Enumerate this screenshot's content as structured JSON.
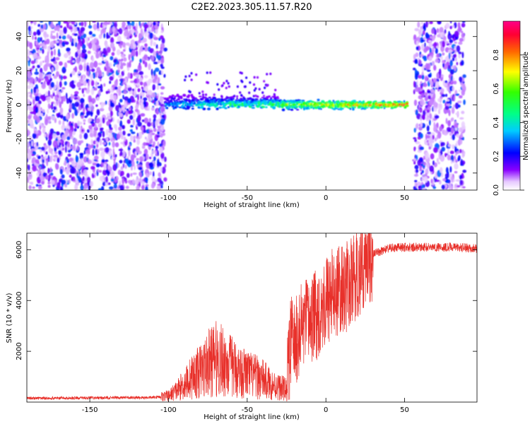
{
  "title": "C2E2.2023.305.11.57.R20",
  "chart_data": [
    {
      "type": "heatmap",
      "description_kind": "spectrogram",
      "xlabel": "Height of straight line (km)",
      "ylabel": "Frequency (Hz)",
      "xlim": [
        -190,
        96
      ],
      "ylim": [
        -50,
        49
      ],
      "xticks": [
        -150,
        -100,
        -50,
        0,
        50
      ],
      "yticks": [
        -40,
        -20,
        0,
        20,
        40
      ],
      "colorbar": {
        "label": "Normalized spectral amplitude",
        "range": [
          0,
          1
        ],
        "ticks": [
          0.0,
          0.2,
          0.4,
          0.6,
          0.8
        ]
      },
      "regions": [
        {
          "name": "noise-left",
          "x_range": [
            -190,
            -102
          ],
          "y_range": [
            -50,
            49
          ],
          "amplitude": 0.15
        },
        {
          "name": "signal-band",
          "x_range": [
            -102,
            52
          ],
          "center_freq_hz": 0,
          "amplitude_peak": 0.95
        },
        {
          "name": "noise-right",
          "x_range": [
            56,
            88
          ],
          "y_range": [
            -50,
            49
          ],
          "amplitude": 0.15
        }
      ]
    },
    {
      "type": "line",
      "xlabel": "Height of straight line (km)",
      "ylabel": "SNR (10 * v/v)",
      "xlim": [
        -190,
        96
      ],
      "ylim": [
        0,
        6650
      ],
      "xticks": [
        -150,
        -100,
        -50,
        0,
        50
      ],
      "yticks": [
        2000,
        4000,
        6000
      ],
      "series": [
        {
          "name": "SNR",
          "color": "#e8302a",
          "x": [
            -190,
            -110,
            -100,
            -95,
            -90,
            -85,
            -80,
            -75,
            -70,
            -65,
            -60,
            -55,
            -50,
            -45,
            -40,
            -35,
            -30,
            -25,
            -22,
            -20,
            -15,
            -10,
            -5,
            0,
            5,
            10,
            15,
            20,
            25,
            30,
            35,
            40,
            50,
            60,
            70,
            80,
            96
          ],
          "y": [
            150,
            180,
            250,
            450,
            700,
            1000,
            1200,
            1500,
            1700,
            1600,
            1400,
            1200,
            1100,
            1000,
            900,
            700,
            600,
            500,
            2600,
            2200,
            3000,
            3200,
            3500,
            4000,
            4300,
            4400,
            4600,
            5000,
            5500,
            5800,
            5950,
            6050,
            6100,
            6100,
            6100,
            6100,
            6050
          ]
        }
      ]
    }
  ]
}
